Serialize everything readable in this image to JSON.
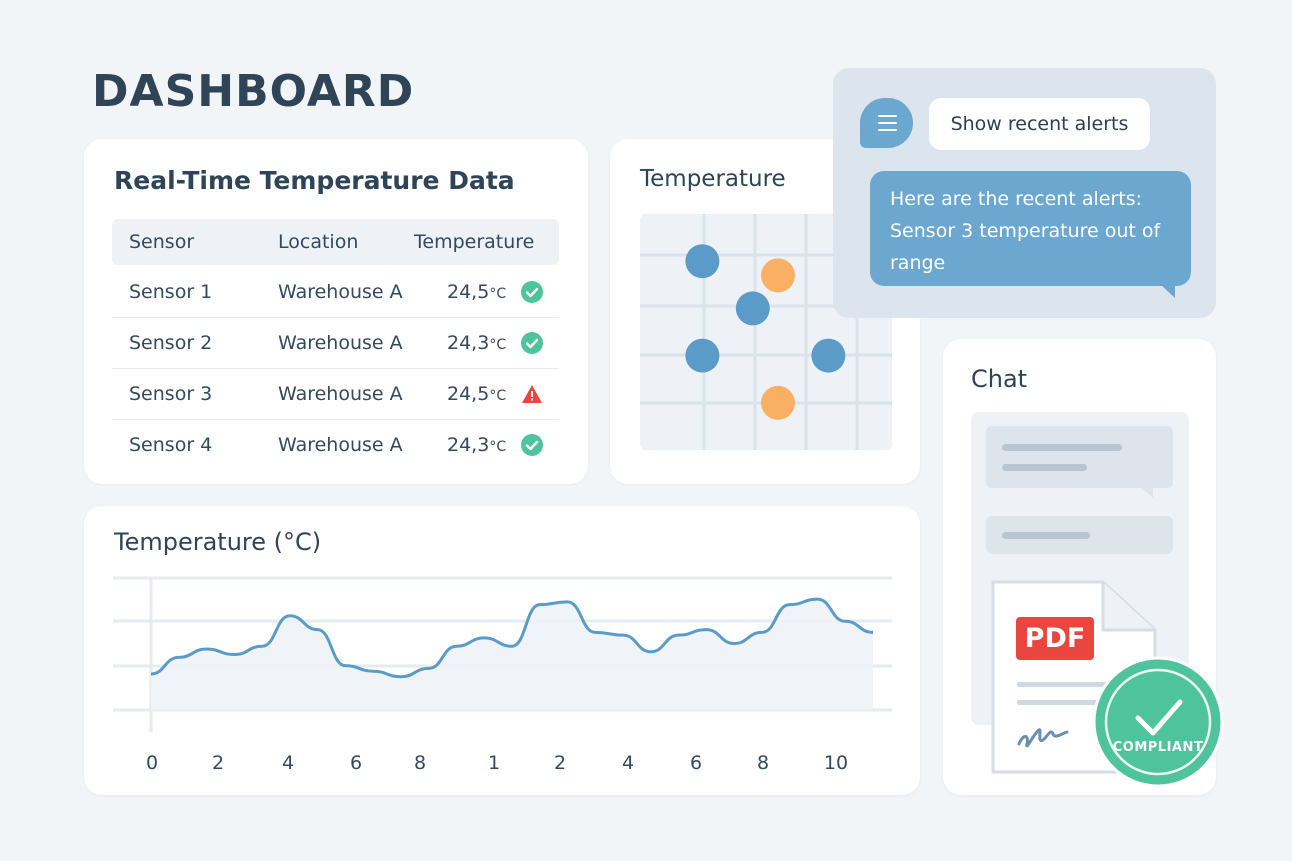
{
  "page": {
    "title": "DASHBOARD"
  },
  "temperature_table": {
    "title": "Real-Time Temperature Data",
    "columns": [
      "Sensor",
      "Location",
      "Temperature"
    ],
    "rows": [
      {
        "sensor": "Sensor 1",
        "location": "Warehouse A",
        "value": "24,5",
        "unit": "°C",
        "status": "ok"
      },
      {
        "sensor": "Sensor 2",
        "location": "Warehouse A",
        "value": "24,3",
        "unit": "°C",
        "status": "ok"
      },
      {
        "sensor": "Sensor 3",
        "location": "Warehouse A",
        "value": "24,5",
        "unit": "°C",
        "status": "warning"
      },
      {
        "sensor": "Sensor 4",
        "location": "Warehouse A",
        "value": "24,3",
        "unit": "°C",
        "status": "ok"
      }
    ],
    "status_colors": {
      "ok": "#4fc39b",
      "warning": "#e8463f"
    }
  },
  "scatter_card": {
    "title": "Temperature"
  },
  "line_card": {
    "title": "Temperature (°C)"
  },
  "chat_card": {
    "title": "Chat",
    "document_label": "PDF",
    "badge_label": "COMPLIANT"
  },
  "alert_chat": {
    "user_message": "Show recent alerts",
    "bot_reply_line1": "Here are the recent alerts:",
    "bot_reply_line2": "Sensor 3 temperature out of range",
    "avatar_icon": "menu-icon"
  },
  "colors": {
    "accent": "#6ba7cf",
    "scatter_blue": "#5b9bc8",
    "scatter_orange": "#f9b064",
    "line": "#5b9bc8",
    "compliant": "#4fc39b"
  },
  "chart_data": [
    {
      "type": "scatter",
      "title": "Temperature",
      "grid": true,
      "x": [
        1,
        2.5,
        1,
        3.5,
        2.5,
        2
      ],
      "y": [
        4,
        3.7,
        2,
        2,
        1,
        3
      ],
      "series_colors": [
        "blue",
        "orange",
        "blue",
        "blue",
        "orange",
        "blue"
      ],
      "xlim": [
        0,
        5
      ],
      "ylim": [
        0,
        5
      ]
    },
    {
      "type": "line",
      "title": "Temperature (°C)",
      "grid": true,
      "x_tick_labels": [
        "0",
        "2",
        "4",
        "6",
        "8",
        "1",
        "2",
        "4",
        "6",
        "8",
        "10"
      ],
      "x": [
        0,
        1,
        2,
        3,
        4,
        5,
        6,
        7,
        8,
        9,
        10,
        11,
        12,
        13,
        14,
        15,
        16,
        17,
        18,
        19,
        20,
        21,
        22,
        23,
        24,
        25,
        26
      ],
      "y": [
        1.3,
        1.9,
        2.2,
        2.0,
        2.3,
        3.4,
        2.9,
        1.6,
        1.4,
        1.2,
        1.5,
        2.3,
        2.6,
        2.3,
        3.8,
        3.9,
        2.8,
        2.7,
        2.1,
        2.7,
        2.9,
        2.4,
        2.8,
        3.8,
        4.0,
        3.2,
        2.8
      ],
      "ylim": [
        0,
        5
      ]
    }
  ]
}
